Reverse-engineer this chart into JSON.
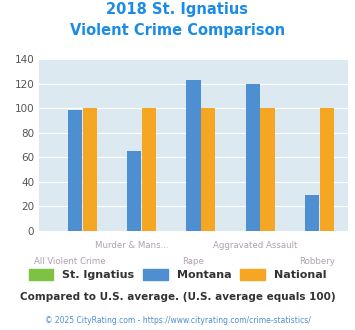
{
  "title_line1": "2018 St. Ignatius",
  "title_line2": "Violent Crime Comparison",
  "categories": [
    "All Violent Crime",
    "Murder & Mans...",
    "Rape",
    "Aggravated Assault",
    "Robbery"
  ],
  "line1_labels": [
    "",
    "Murder & Mans...",
    "",
    "Aggravated Assault",
    ""
  ],
  "line2_labels": [
    "All Violent Crime",
    "",
    "Rape",
    "",
    "Robbery"
  ],
  "st_ignatius": [
    0,
    0,
    0,
    0,
    0
  ],
  "montana": [
    99,
    65,
    123,
    120,
    29
  ],
  "national": [
    100,
    100,
    100,
    100,
    100
  ],
  "color_st_ignatius": "#7dc242",
  "color_montana": "#4d8fd1",
  "color_national": "#f5a623",
  "ylim": [
    0,
    140
  ],
  "yticks": [
    0,
    20,
    40,
    60,
    80,
    100,
    120,
    140
  ],
  "background_color": "#dce9f0",
  "title_color": "#1a8ce8",
  "xlabel_color": "#b0a0b0",
  "footer_text": "Compared to U.S. average. (U.S. average equals 100)",
  "copyright_text": "© 2025 CityRating.com - https://www.cityrating.com/crime-statistics/",
  "footer_color": "#333333",
  "copyright_color": "#4d8fd1",
  "legend_labels": [
    "St. Ignatius",
    "Montana",
    "National"
  ]
}
